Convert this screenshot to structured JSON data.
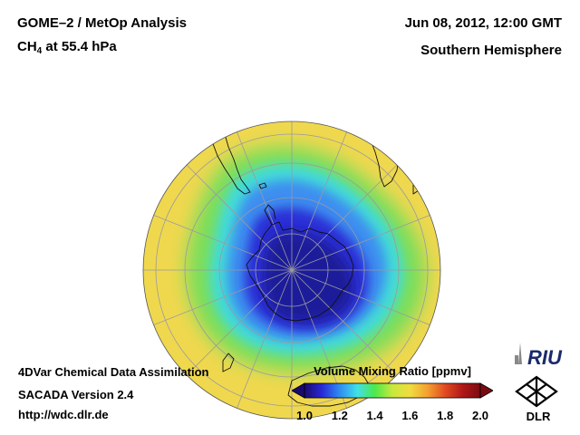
{
  "header": {
    "title": "GOME–2 / MetOp Analysis",
    "species_base": "CH",
    "species_sub": "4",
    "species_rest": " at 55.4 hPa",
    "datetime": "Jun 08, 2012, 12:00 GMT",
    "hemisphere": "Southern Hemisphere"
  },
  "footer": {
    "line1": "4DVar Chemical Data Assimilation",
    "line2": "SACADA Version 2.4",
    "line3": "http://wdc.dlr.de"
  },
  "colorbar": {
    "title": "Volume Mixing Ratio [ppmv]",
    "ticks": [
      "1.0",
      "1.2",
      "1.4",
      "1.6",
      "1.8",
      "2.0"
    ],
    "min": 1.0,
    "max": 2.0,
    "colors": [
      "#1a0a6e",
      "#2a2ad6",
      "#2f8cf2",
      "#40e0e8",
      "#4ee84c",
      "#c8e83c",
      "#f0dc40",
      "#f4a030",
      "#e04a20",
      "#b01818",
      "#7a0c10"
    ]
  },
  "map": {
    "projection": "Orthographic south-polar",
    "palette": {
      "ocean_yellow": "#f0d84e",
      "green_band": "#78de5c",
      "cyan_ring": "#42dcd8",
      "blue_ring": "#3c8ef0",
      "core": "#2a2ed6",
      "deep_core": "#1c1a9a"
    }
  },
  "logos": {
    "riu": "RIU",
    "dlr": "DLR"
  }
}
